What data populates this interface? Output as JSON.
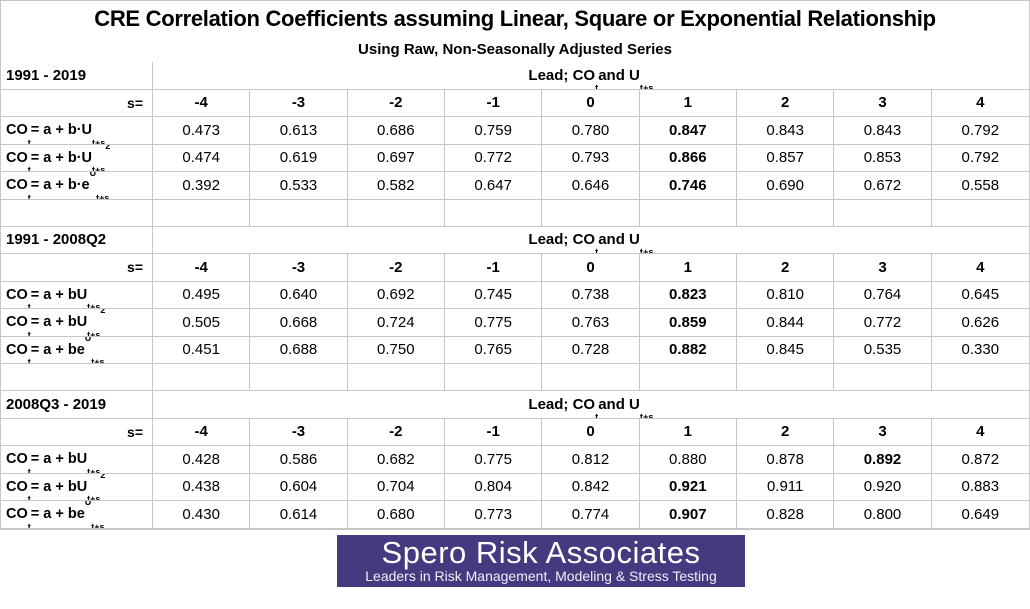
{
  "title": "CRE Correlation Coefficients assuming Linear, Square or Exponential Relationship",
  "subtitle": "Using Raw, Non-Seasonally Adjusted Series",
  "columns_label": "s=",
  "columns": [
    "-4",
    "-3",
    "-2",
    "-1",
    "0",
    "1",
    "2",
    "3",
    "4"
  ],
  "lead_header_tokens": [
    [
      "t",
      "Lead; CO"
    ],
    [
      "sub",
      "t"
    ],
    [
      "t",
      " and U"
    ],
    [
      "sub",
      "t+s"
    ]
  ],
  "sections": [
    {
      "period": "1991 - 2019",
      "rows": [
        {
          "formula_tokens": [
            [
              "t",
              "CO"
            ],
            [
              "sub",
              "t"
            ],
            [
              "t",
              " = a + b·U"
            ],
            [
              "sub",
              "t+s"
            ]
          ],
          "values": [
            "0.473",
            "0.613",
            "0.686",
            "0.759",
            "0.780",
            "0.847",
            "0.843",
            "0.843",
            "0.792"
          ],
          "bold_index": 5
        },
        {
          "formula_tokens": [
            [
              "t",
              "CO"
            ],
            [
              "sub",
              "t"
            ],
            [
              "t",
              " = a + b·U"
            ],
            [
              "sub",
              "t+s"
            ],
            [
              "sup",
              "2"
            ]
          ],
          "values": [
            "0.474",
            "0.619",
            "0.697",
            "0.772",
            "0.793",
            "0.866",
            "0.857",
            "0.853",
            "0.792"
          ],
          "bold_index": 5
        },
        {
          "formula_tokens": [
            [
              "t",
              "CO"
            ],
            [
              "sub",
              "t"
            ],
            [
              "t",
              " = a + b·e"
            ],
            [
              "sup",
              "U"
            ],
            [
              "sub",
              "t+s"
            ]
          ],
          "values": [
            "0.392",
            "0.533",
            "0.582",
            "0.647",
            "0.646",
            "0.746",
            "0.690",
            "0.672",
            "0.558"
          ],
          "bold_index": 5
        }
      ]
    },
    {
      "period": "1991 - 2008Q2",
      "rows": [
        {
          "formula_tokens": [
            [
              "t",
              "CO"
            ],
            [
              "sub",
              "t"
            ],
            [
              "t",
              " = a + bU"
            ],
            [
              "sub",
              "t+s"
            ]
          ],
          "values": [
            "0.495",
            "0.640",
            "0.692",
            "0.745",
            "0.738",
            "0.823",
            "0.810",
            "0.764",
            "0.645"
          ],
          "bold_index": 5
        },
        {
          "formula_tokens": [
            [
              "t",
              "CO"
            ],
            [
              "sub",
              "t"
            ],
            [
              "t",
              " = a + bU"
            ],
            [
              "sub",
              "t+s"
            ],
            [
              "sup",
              "2"
            ]
          ],
          "values": [
            "0.505",
            "0.668",
            "0.724",
            "0.775",
            "0.763",
            "0.859",
            "0.844",
            "0.772",
            "0.626"
          ],
          "bold_index": 5
        },
        {
          "formula_tokens": [
            [
              "t",
              "CO"
            ],
            [
              "sub",
              "t"
            ],
            [
              "t",
              " = a + be"
            ],
            [
              "sup",
              "U"
            ],
            [
              "sub",
              "t+s"
            ]
          ],
          "values": [
            "0.451",
            "0.688",
            "0.750",
            "0.765",
            "0.728",
            "0.882",
            "0.845",
            "0.535",
            "0.330"
          ],
          "bold_index": 5
        }
      ]
    },
    {
      "period": "2008Q3 - 2019",
      "rows": [
        {
          "formula_tokens": [
            [
              "t",
              "CO"
            ],
            [
              "sub",
              "t"
            ],
            [
              "t",
              " = a + bU"
            ],
            [
              "sub",
              "t+s"
            ]
          ],
          "values": [
            "0.428",
            "0.586",
            "0.682",
            "0.775",
            "0.812",
            "0.880",
            "0.878",
            "0.892",
            "0.872"
          ],
          "bold_index": 7
        },
        {
          "formula_tokens": [
            [
              "t",
              "CO"
            ],
            [
              "sub",
              "t"
            ],
            [
              "t",
              " = a + bU"
            ],
            [
              "sub",
              "t+s"
            ],
            [
              "sup",
              "2"
            ]
          ],
          "values": [
            "0.438",
            "0.604",
            "0.704",
            "0.804",
            "0.842",
            "0.921",
            "0.911",
            "0.920",
            "0.883"
          ],
          "bold_index": 5
        },
        {
          "formula_tokens": [
            [
              "t",
              "CO"
            ],
            [
              "sub",
              "t"
            ],
            [
              "t",
              " = a + be"
            ],
            [
              "sup",
              "U"
            ],
            [
              "sub",
              "t+s"
            ]
          ],
          "values": [
            "0.430",
            "0.614",
            "0.680",
            "0.773",
            "0.774",
            "0.907",
            "0.828",
            "0.800",
            "0.649"
          ],
          "bold_index": 5
        }
      ]
    }
  ],
  "logo": {
    "name": "Spero Risk Associates",
    "tagline": "Leaders in Risk Management, Modeling & Stress Testing",
    "background": "#453a80"
  },
  "colors": {
    "gridline": "#c6c6c6",
    "text": "#000000",
    "logo_background": "#453a80",
    "logo_text": "#ffffff"
  }
}
